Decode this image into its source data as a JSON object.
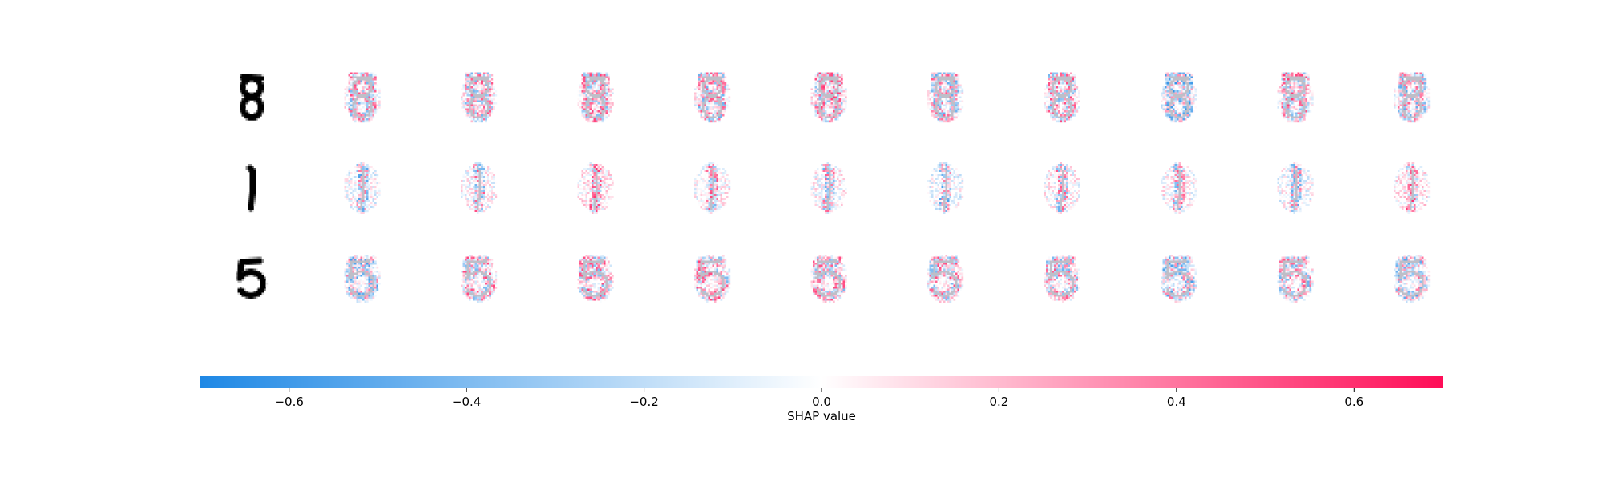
{
  "chart_data": {
    "type": "heatmap",
    "title": "",
    "rows": [
      {
        "digit": "8",
        "outputs": 10
      },
      {
        "digit": "1",
        "outputs": 10
      },
      {
        "digit": "5",
        "outputs": 10
      }
    ],
    "colorbar": {
      "label": "SHAP value",
      "range": [
        -0.7,
        0.7
      ],
      "ticks": [
        -0.6,
        -0.4,
        -0.2,
        0.0,
        0.2,
        0.4,
        0.6
      ],
      "tick_labels": [
        "−0.6",
        "−0.4",
        "−0.2",
        "0.0",
        "0.2",
        "0.4",
        "0.6"
      ],
      "colors": {
        "negative": "#1e88e5",
        "zero": "#ffffff",
        "positive": "#ff0d57"
      }
    }
  }
}
